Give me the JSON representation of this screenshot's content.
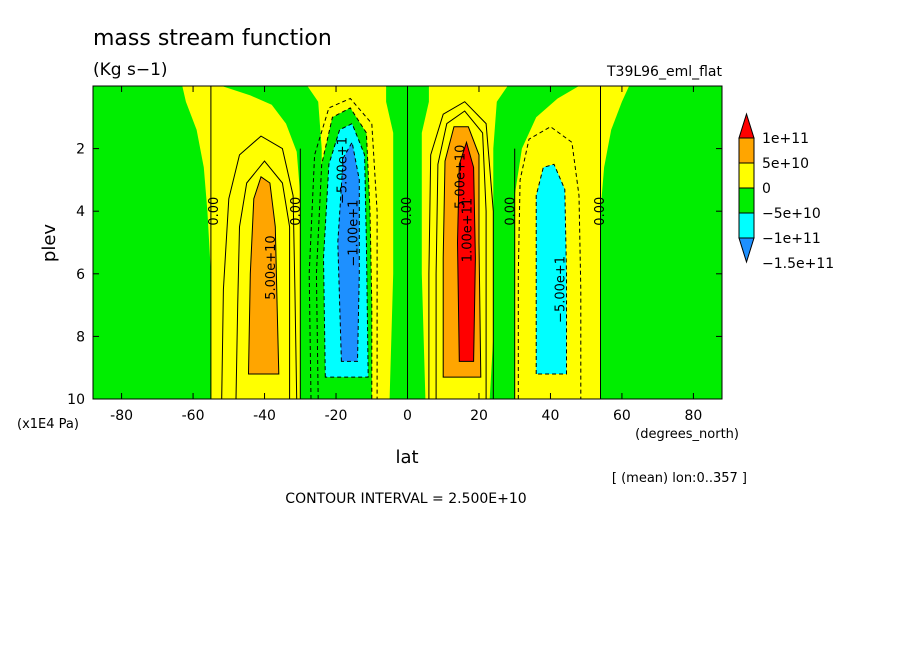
{
  "chart_data": {
    "type": "contour",
    "title": "mass stream function",
    "units": "(Kg s−1)",
    "run_label": "T39L96_eml_flat",
    "xlabel": "lat",
    "xunits": "(degrees_north)",
    "ylabel": "plev",
    "yunits": "(x1E4 Pa)",
    "xlim": [
      -88,
      88
    ],
    "ylim": [
      10,
      0
    ],
    "x_ticks": [
      -80,
      -60,
      -40,
      -20,
      0,
      20,
      40,
      60,
      80
    ],
    "y_ticks": [
      2,
      4,
      6,
      8,
      10
    ],
    "mean_note": "[ (mean) lon:0..357 ]",
    "contour_interval": "CONTOUR INTERVAL = 2.500E+10",
    "colors": {
      "red": "#ff0000",
      "orange": "#ffa500",
      "yellow": "#ffff00",
      "green": "#00ee00",
      "cyan": "#00ffff",
      "blue": "#1e90ff"
    },
    "legend": {
      "levels": [
        "1e+11",
        "5e+10",
        "0",
        "−5e+10",
        "−1e+11",
        "−1.5e+11"
      ],
      "bands": [
        "red",
        "orange",
        "yellow",
        "green",
        "cyan",
        "blue"
      ]
    },
    "cells": [
      {
        "name": "southern-positive-cell",
        "lat": -40,
        "peak": 75000000000
      },
      {
        "name": "southern-negative-cell",
        "lat": -17,
        "peak": -125000000000
      },
      {
        "name": "northern-positive-cell",
        "lat": 17,
        "peak": 125000000000
      },
      {
        "name": "northern-negative-cell",
        "lat": 40,
        "peak": -75000000000
      }
    ],
    "contour_labels": [
      {
        "text": "0.00",
        "lat": -54,
        "plev": 4
      },
      {
        "text": "5.00e+10",
        "lat": -38,
        "plev": 5.8
      },
      {
        "text": "0.00",
        "lat": -31,
        "plev": 4
      },
      {
        "text": "−5.00e+1",
        "lat": -18,
        "plev": 2.7
      },
      {
        "text": "−1.00e+1",
        "lat": -15,
        "plev": 4.7
      },
      {
        "text": "0.00",
        "lat": 0,
        "plev": 4
      },
      {
        "text": "5.00e+10",
        "lat": 15,
        "plev": 2.9
      },
      {
        "text": "1.00e+11",
        "lat": 17,
        "plev": 4.6
      },
      {
        "text": "0.00",
        "lat": 29,
        "plev": 4
      },
      {
        "text": "−5.00e+1",
        "lat": 43,
        "plev": 6.5
      },
      {
        "text": "0.00",
        "lat": 54,
        "plev": 4
      }
    ]
  }
}
